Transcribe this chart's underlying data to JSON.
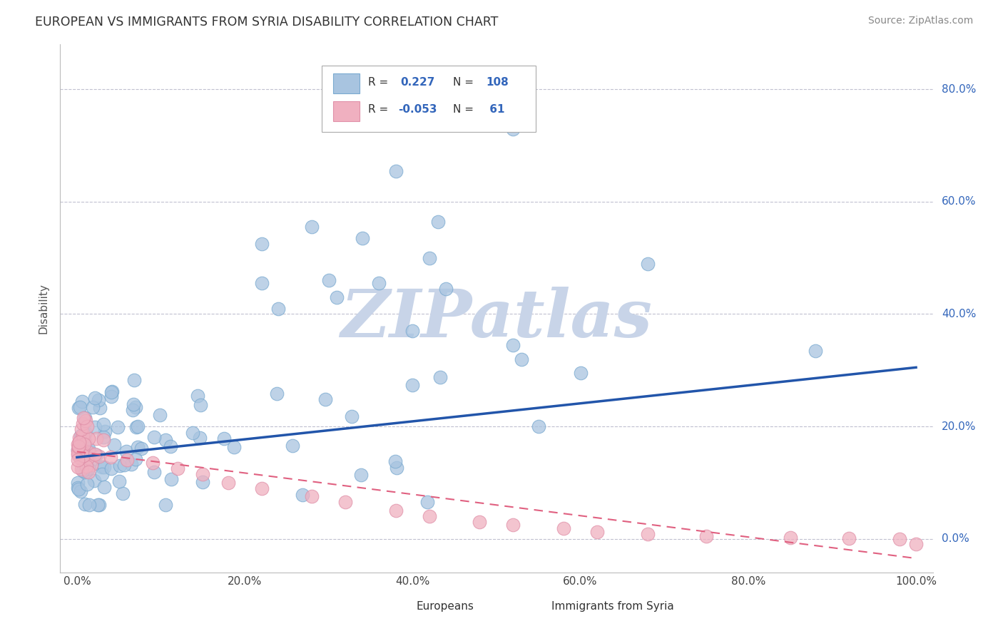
{
  "title": "EUROPEAN VS IMMIGRANTS FROM SYRIA DISABILITY CORRELATION CHART",
  "source": "Source: ZipAtlas.com",
  "ylabel": "Disability",
  "watermark": "ZIPatlas",
  "european_color": "#a8c4e0",
  "syria_color": "#f0b0c0",
  "european_line_color": "#2255aa",
  "syria_line_color": "#e06080",
  "background_color": "#ffffff",
  "grid_color": "#c0c0d0",
  "watermark_color": "#c8d4e8",
  "xlim": [
    -0.02,
    1.02
  ],
  "ylim": [
    -0.06,
    0.88
  ],
  "yticks": [
    0.0,
    0.2,
    0.4,
    0.6,
    0.8
  ],
  "ytick_labels": [
    "0.0%",
    "20.0%",
    "40.0%",
    "60.0%",
    "80.0%"
  ],
  "xticks": [
    0.0,
    0.2,
    0.4,
    0.6,
    0.8,
    1.0
  ],
  "xtick_labels": [
    "0.0%",
    "20.0%",
    "40.0%",
    "60.0%",
    "80.0%",
    "100.0%"
  ],
  "eu_trend_x": [
    0.0,
    1.0
  ],
  "eu_trend_y": [
    0.145,
    0.305
  ],
  "sy_trend_x": [
    0.0,
    1.0
  ],
  "sy_trend_y": [
    0.155,
    -0.035
  ]
}
